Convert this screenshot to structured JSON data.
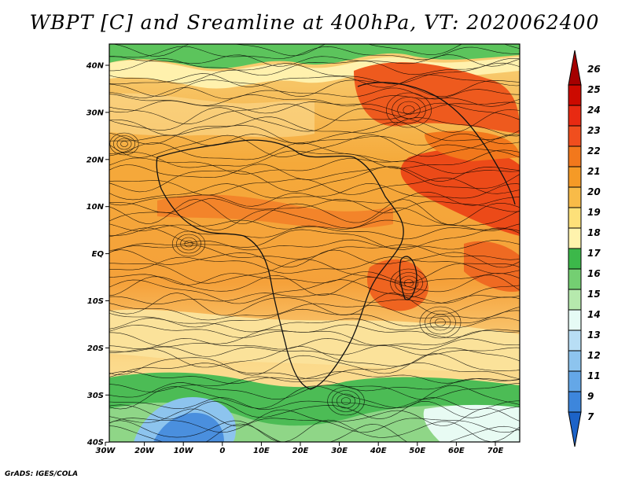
{
  "title": "WBPT [C] and Sreamline at 400hPa, VT: 2020062400",
  "credit": "GrADS: IGES/COLA",
  "map": {
    "lat_ticks": [
      "40N",
      "30N",
      "20N",
      "10N",
      "EQ",
      "10S",
      "20S",
      "30S",
      "40S"
    ],
    "lon_ticks": [
      "30W",
      "20W",
      "10W",
      "0",
      "10E",
      "20E",
      "30E",
      "40E",
      "50E",
      "60E",
      "70E"
    ]
  },
  "colorbar": {
    "levels": [
      {
        "label": "26",
        "color": "#a50000"
      },
      {
        "label": "25",
        "color": "#cc0a00"
      },
      {
        "label": "24",
        "color": "#e82a12"
      },
      {
        "label": "23",
        "color": "#f04e1e"
      },
      {
        "label": "22",
        "color": "#f2781c"
      },
      {
        "label": "21",
        "color": "#f59a26"
      },
      {
        "label": "20",
        "color": "#f8bb48"
      },
      {
        "label": "19",
        "color": "#fde079"
      },
      {
        "label": "18",
        "color": "#fff3ad"
      },
      {
        "label": "17",
        "color": "#3cb84a"
      },
      {
        "label": "16",
        "color": "#74cf72"
      },
      {
        "label": "15",
        "color": "#b6e9ad"
      },
      {
        "label": "14",
        "color": "#e6fbf5"
      },
      {
        "label": "13",
        "color": "#b8def5"
      },
      {
        "label": "12",
        "color": "#8dc4ee"
      },
      {
        "label": "11",
        "color": "#64a7e7"
      },
      {
        "label": "9",
        "color": "#3d86dc"
      },
      {
        "label": "7",
        "color": "#1c63c8"
      }
    ]
  }
}
